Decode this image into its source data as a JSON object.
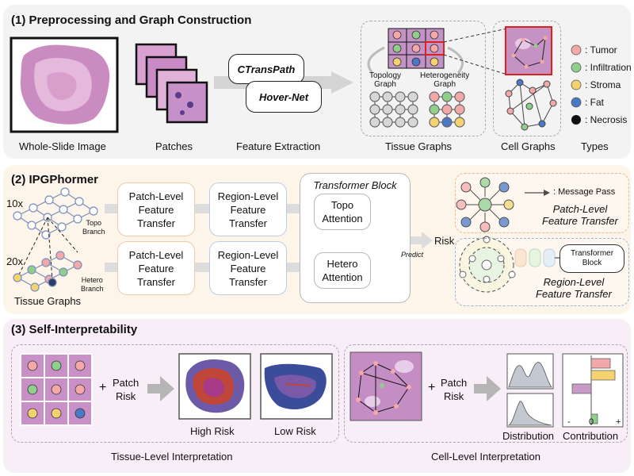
{
  "sections": {
    "s1_title": "(1) Preprocessing and Graph Construction",
    "s2_title": "(2) IPGPhormer",
    "s3_title": "(3) Self-Interpretability"
  },
  "s1": {
    "wsi_caption": "Whole-Slide Image",
    "patches_caption": "Patches",
    "feature_caption": "Feature Extraction",
    "ctranspath": "CTransPath",
    "hovernet": "Hover-Net",
    "topology_graph": "Topology\nGraph",
    "heterogeneity_graph": "Heterogeneity\nGraph",
    "tissue_graphs_caption": "Tissue Graphs",
    "cell_graphs_caption": "Cell Graphs",
    "types_caption": "Types",
    "types": [
      {
        "label": ": Tumor",
        "color": "#f4a9a8"
      },
      {
        "label": ": Infiltration",
        "color": "#8fce8b"
      },
      {
        "label": ": Stroma",
        "color": "#f5d270"
      },
      {
        "label": ": Fat",
        "color": "#4a78c4"
      },
      {
        "label": ": Necrosis",
        "color": "#111111"
      }
    ]
  },
  "s2": {
    "mag_10x": "10x",
    "mag_20x": "20x",
    "topo_branch": "Topo\nBranch",
    "hetero_branch": "Hetero\nBranch",
    "tissue_graphs": "Tissue Graphs",
    "patch_level_transfer": "Patch-Level\nFeature\nTransfer",
    "region_level_transfer": "Region-Level\nFeature\nTransfer",
    "transformer_block": "Transformer Block",
    "topo_attention": "Topo\nAttention",
    "hetero_attention": "Hetero\nAttention",
    "predict": "Predict",
    "risk": "Risk",
    "message_pass": ": Message Pass",
    "patch_level_legend": "Patch-Level\nFeature Transfer",
    "region_level_legend": "Region-Level\nFeature Transfer",
    "transformer_block_small": "Transformer\nBlock"
  },
  "s3": {
    "patch_risk_1": "Patch\nRisk",
    "patch_risk_2": "Patch\nRisk",
    "high_risk": "High Risk",
    "low_risk": "Low Risk",
    "tissue_level": "Tissue-Level Interpretation",
    "cell_level": "Cell-Level Interpretation",
    "distribution": "Distribution",
    "contribution": "Contribution",
    "plus": "+",
    "axis_minus": "-",
    "axis_zero": "0",
    "axis_plus": "+"
  }
}
